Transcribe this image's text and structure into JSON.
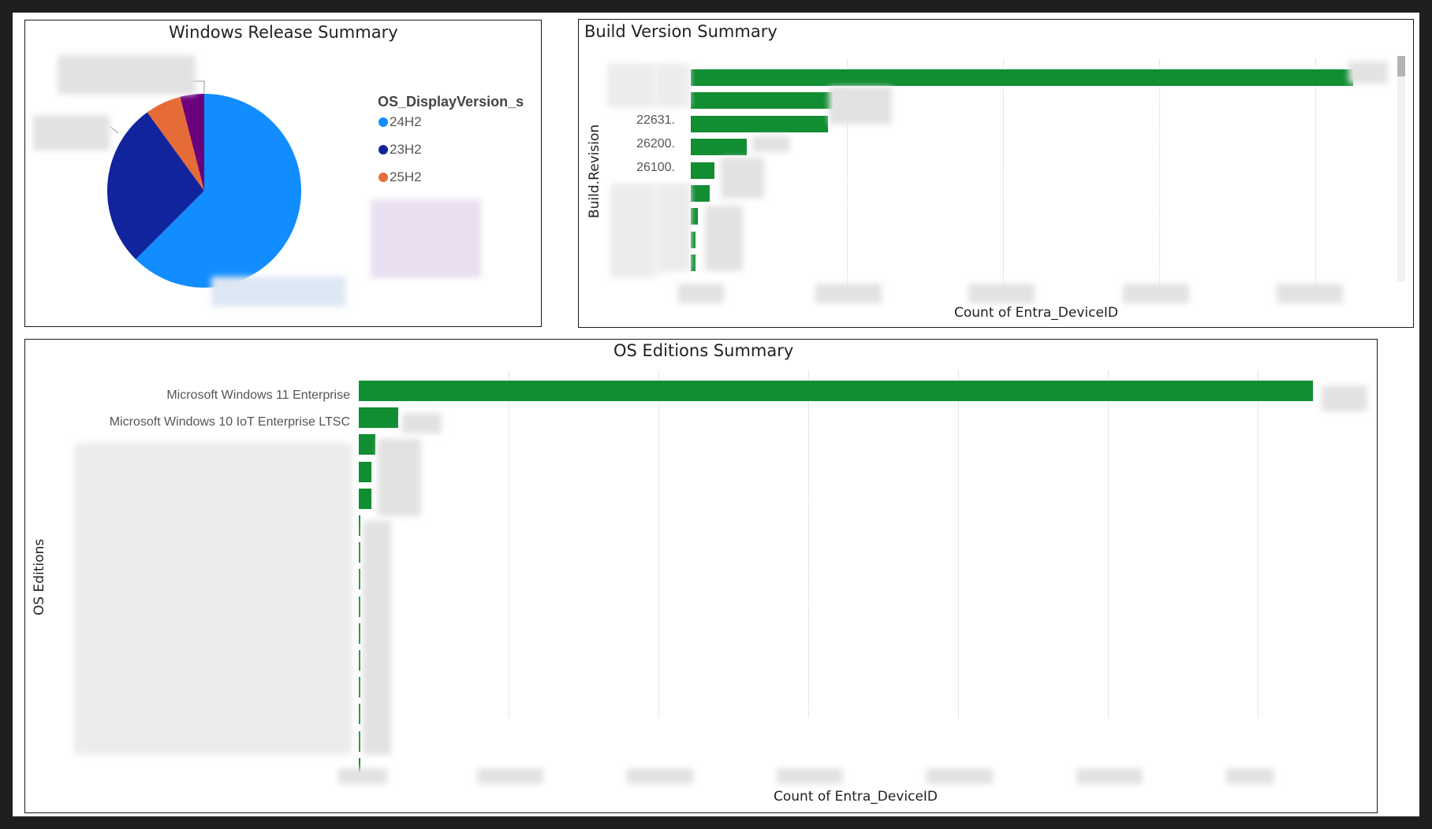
{
  "chart_data": [
    {
      "type": "pie",
      "title": "Windows Release Summary",
      "legend_title": "OS_DisplayVersion_s",
      "legend_position": "right",
      "slices": [
        {
          "label": "24H2",
          "value": 62.5,
          "color": "#118dff"
        },
        {
          "label": "23H2",
          "value": 27.5,
          "color": "#12239e"
        },
        {
          "label": "25H2",
          "value": 6.0,
          "color": "#e66c37"
        },
        {
          "label": "",
          "value": 4.0,
          "color": "#6b007b"
        }
      ]
    },
    {
      "type": "bar",
      "orientation": "horizontal",
      "title": "Build Version Summary",
      "ylabel": "Build.Revision",
      "xlabel": "Count of Entra_DeviceID",
      "grid": true,
      "categories": [
        "",
        "",
        "22631.",
        "26200.",
        "26100.",
        "",
        "",
        "",
        ""
      ],
      "values": [
        100,
        21.4,
        20.7,
        8.5,
        3.6,
        2.8,
        1.1,
        0.7,
        0.7
      ],
      "xlim": [
        0,
        100
      ],
      "bar_color": "#118d32"
    },
    {
      "type": "bar",
      "orientation": "horizontal",
      "title": "OS Editions Summary",
      "ylabel": "OS Editions",
      "xlabel": "Count of Entra_DeviceID",
      "grid": true,
      "categories": [
        "Microsoft Windows 11 Enterprise",
        "Microsoft Windows 10 IoT Enterprise LTSC",
        "",
        "",
        "",
        "",
        "",
        "",
        "",
        "",
        "",
        "",
        "",
        "",
        ""
      ],
      "values": [
        100,
        4.1,
        1.7,
        1.3,
        1.3,
        0.2,
        0.2,
        0.2,
        0.2,
        0.2,
        0.2,
        0.2,
        0.2,
        0.2,
        0.2
      ],
      "xlim": [
        0,
        100
      ],
      "bar_color": "#118d32"
    }
  ]
}
